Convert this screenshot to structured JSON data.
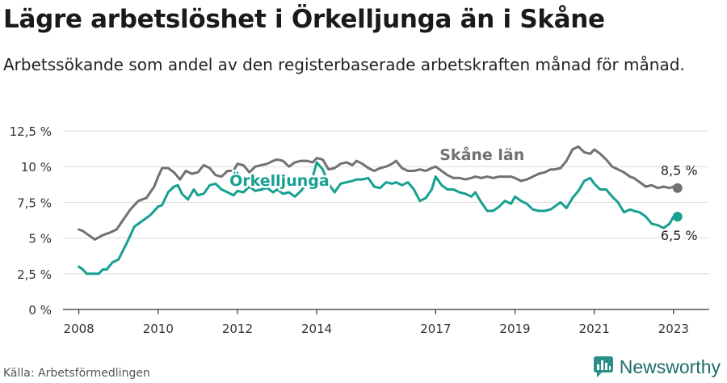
{
  "header": {
    "title": "Lägre arbetslöshet i Örkelljunga än i Skåne",
    "subtitle": "Arbetssökande som andel av den registerbaserade arbetskraften månad för månad."
  },
  "footer": {
    "source": "Källa: Arbetsförmedlingen",
    "brand": "Newsworthy"
  },
  "colors": {
    "skane": "#707075",
    "orkelljunga": "#16a092",
    "grid": "#dcdcdc",
    "axis": "#333333"
  },
  "chart_data": {
    "type": "line",
    "title": "Lägre arbetslöshet i Örkelljunga än i Skåne",
    "subtitle": "Arbetssökande som andel av den registerbaserade arbetskraften månad för månad.",
    "xlabel": "",
    "ylabel": "",
    "x_range": [
      2007.6,
      2023.9
    ],
    "ylim": [
      0,
      12.5
    ],
    "y_ticks": [
      0,
      2.5,
      5,
      7.5,
      10,
      12.5
    ],
    "y_tick_labels": [
      "0 %",
      "2,5 %",
      "5 %",
      "7,5 %",
      "10 %",
      "12,5 %"
    ],
    "x_ticks": [
      2008,
      2010,
      2012,
      2014,
      2017,
      2019,
      2021,
      2023
    ],
    "x_tick_labels": [
      "2008",
      "2010",
      "2012",
      "2014",
      "2017",
      "2019",
      "2021",
      "2023"
    ],
    "grid": true,
    "series": [
      {
        "name": "Skåne län",
        "label": "Skåne län",
        "end_label": "8,5 %",
        "x": [
          2008.0,
          2008.1,
          2008.2,
          2008.3,
          2008.4,
          2008.6,
          2008.8,
          2008.95,
          2009.1,
          2009.3,
          2009.5,
          2009.7,
          2009.9,
          2010.0,
          2010.1,
          2010.25,
          2010.4,
          2010.55,
          2010.7,
          2010.85,
          2011.0,
          2011.15,
          2011.3,
          2011.45,
          2011.6,
          2011.75,
          2011.9,
          2012.0,
          2012.15,
          2012.3,
          2012.45,
          2012.6,
          2012.75,
          2012.9,
          2013.0,
          2013.15,
          2013.3,
          2013.45,
          2013.6,
          2013.75,
          2013.9,
          2014.0,
          2014.15,
          2014.3,
          2014.45,
          2014.6,
          2014.75,
          2014.9,
          2015.0,
          2015.15,
          2015.3,
          2015.45,
          2015.6,
          2015.75,
          2015.9,
          2016.0,
          2016.15,
          2016.3,
          2016.45,
          2016.6,
          2016.75,
          2016.9,
          2017.0,
          2017.15,
          2017.3,
          2017.45,
          2017.6,
          2017.75,
          2017.9,
          2018.0,
          2018.15,
          2018.3,
          2018.45,
          2018.6,
          2018.75,
          2018.9,
          2019.0,
          2019.15,
          2019.3,
          2019.45,
          2019.6,
          2019.75,
          2019.9,
          2020.0,
          2020.15,
          2020.3,
          2020.45,
          2020.6,
          2020.75,
          2020.9,
          2021.0,
          2021.15,
          2021.3,
          2021.45,
          2021.6,
          2021.75,
          2021.9,
          2022.0,
          2022.15,
          2022.3,
          2022.45,
          2022.6,
          2022.75,
          2022.9,
          2023.0,
          2023.1
        ],
        "values": [
          5.6,
          5.5,
          5.3,
          5.1,
          4.9,
          5.2,
          5.4,
          5.6,
          6.2,
          7.0,
          7.6,
          7.8,
          8.6,
          9.3,
          9.9,
          9.9,
          9.6,
          9.1,
          9.7,
          9.5,
          9.6,
          10.1,
          9.9,
          9.4,
          9.3,
          9.7,
          9.7,
          10.2,
          10.1,
          9.6,
          10.0,
          10.1,
          10.2,
          10.4,
          10.5,
          10.4,
          10.0,
          10.3,
          10.4,
          10.4,
          10.3,
          10.6,
          10.5,
          9.8,
          9.9,
          10.2,
          10.3,
          10.1,
          10.4,
          10.2,
          9.9,
          9.7,
          9.9,
          10.0,
          10.2,
          10.4,
          9.9,
          9.7,
          9.7,
          9.8,
          9.7,
          9.9,
          10.0,
          9.7,
          9.4,
          9.2,
          9.2,
          9.1,
          9.2,
          9.3,
          9.2,
          9.3,
          9.2,
          9.3,
          9.3,
          9.3,
          9.2,
          9.0,
          9.1,
          9.3,
          9.5,
          9.6,
          9.8,
          9.8,
          9.9,
          10.4,
          11.2,
          11.4,
          11.0,
          10.9,
          11.2,
          10.9,
          10.5,
          10.0,
          9.8,
          9.6,
          9.3,
          9.2,
          8.9,
          8.6,
          8.7,
          8.5,
          8.6,
          8.5,
          8.6,
          8.5
        ]
      },
      {
        "name": "Örkelljunga",
        "label": "Örkelljunga",
        "end_label": "6,5 %",
        "x": [
          2008.0,
          2008.1,
          2008.2,
          2008.3,
          2008.4,
          2008.5,
          2008.6,
          2008.7,
          2008.85,
          2009.0,
          2009.2,
          2009.4,
          2009.6,
          2009.8,
          2010.0,
          2010.1,
          2010.25,
          2010.4,
          2010.5,
          2010.6,
          2010.75,
          2010.9,
          2011.0,
          2011.15,
          2011.3,
          2011.45,
          2011.6,
          2011.75,
          2011.9,
          2012.0,
          2012.15,
          2012.3,
          2012.45,
          2012.6,
          2012.75,
          2012.9,
          2013.0,
          2013.15,
          2013.3,
          2013.45,
          2013.6,
          2013.75,
          2013.9,
          2014.0,
          2014.15,
          2014.3,
          2014.45,
          2014.6,
          2014.75,
          2014.9,
          2015.0,
          2015.15,
          2015.3,
          2015.45,
          2015.6,
          2015.75,
          2015.9,
          2016.0,
          2016.15,
          2016.3,
          2016.45,
          2016.6,
          2016.75,
          2016.9,
          2017.0,
          2017.15,
          2017.3,
          2017.45,
          2017.6,
          2017.75,
          2017.9,
          2018.0,
          2018.15,
          2018.3,
          2018.45,
          2018.6,
          2018.75,
          2018.9,
          2019.0,
          2019.15,
          2019.3,
          2019.45,
          2019.6,
          2019.75,
          2019.9,
          2020.0,
          2020.15,
          2020.3,
          2020.45,
          2020.6,
          2020.75,
          2020.9,
          2021.0,
          2021.15,
          2021.3,
          2021.45,
          2021.6,
          2021.75,
          2021.9,
          2022.0,
          2022.15,
          2022.3,
          2022.45,
          2022.6,
          2022.75,
          2022.9,
          2023.0,
          2023.1
        ],
        "values": [
          3.0,
          2.8,
          2.5,
          2.5,
          2.5,
          2.5,
          2.8,
          2.8,
          3.3,
          3.5,
          4.6,
          5.8,
          6.2,
          6.6,
          7.2,
          7.3,
          8.2,
          8.6,
          8.7,
          8.1,
          7.7,
          8.4,
          8.0,
          8.1,
          8.7,
          8.8,
          8.4,
          8.2,
          8.0,
          8.3,
          8.2,
          8.6,
          8.3,
          8.4,
          8.5,
          8.2,
          8.4,
          8.1,
          8.2,
          7.9,
          8.3,
          8.8,
          9.3,
          10.3,
          9.8,
          8.8,
          8.2,
          8.8,
          8.9,
          9.0,
          9.1,
          9.1,
          9.2,
          8.6,
          8.5,
          8.9,
          8.8,
          8.9,
          8.7,
          8.9,
          8.4,
          7.6,
          7.8,
          8.4,
          9.3,
          8.7,
          8.4,
          8.4,
          8.2,
          8.1,
          7.9,
          8.2,
          7.5,
          6.9,
          6.9,
          7.2,
          7.6,
          7.4,
          7.9,
          7.6,
          7.4,
          7.0,
          6.9,
          6.9,
          7.0,
          7.2,
          7.5,
          7.1,
          7.8,
          8.3,
          9.0,
          9.2,
          8.8,
          8.4,
          8.4,
          7.9,
          7.5,
          6.8,
          7.0,
          6.9,
          6.8,
          6.5,
          6.0,
          5.9,
          5.7,
          6.0,
          6.5,
          6.5
        ]
      }
    ]
  }
}
